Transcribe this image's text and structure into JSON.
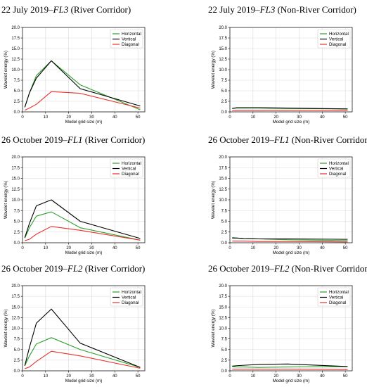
{
  "colors": {
    "Horizontal": "#2ca02c",
    "Vertical": "#000000",
    "Diagonal": "#e8302a"
  },
  "chart_data": [
    {
      "type": "line",
      "title": {
        "pre": "22 July 2019–",
        "em": "FL3",
        "post": " (River Corridor)"
      },
      "xlabel": "Model grid size (m)",
      "ylabel": "Wavelet energy (%)",
      "xlim": [
        0,
        53
      ],
      "ylim": [
        0,
        20
      ],
      "xticks": [
        0,
        10,
        20,
        30,
        40,
        50
      ],
      "yticks": [
        "0.0",
        "2.5",
        "5.0",
        "7.5",
        "10.0",
        "12.5",
        "15.0",
        "17.5",
        "20.0"
      ],
      "grid": true,
      "legend": "top-right",
      "x": [
        1,
        3,
        6,
        12.5,
        25,
        51
      ],
      "series": [
        {
          "name": "Horizontal",
          "values": [
            1.1,
            4.5,
            8.6,
            12.1,
            6.4,
            0.5
          ]
        },
        {
          "name": "Vertical",
          "values": [
            1.1,
            4.5,
            8.0,
            12.1,
            5.5,
            1.4
          ]
        },
        {
          "name": "Diagonal",
          "values": [
            0.4,
            0.9,
            1.8,
            4.8,
            4.4,
            0.9
          ]
        }
      ]
    },
    {
      "type": "line",
      "title": {
        "pre": "22 July 2019–",
        "em": "FL3",
        "post": " (Non-River Corridor)"
      },
      "xlabel": "Model grid size (m)",
      "ylabel": "Wavelet energy (%)",
      "xlim": [
        0,
        53
      ],
      "ylim": [
        0,
        20
      ],
      "xticks": [
        0,
        10,
        20,
        30,
        40,
        50
      ],
      "yticks": [
        "0.0",
        "2.5",
        "5.0",
        "7.5",
        "10.0",
        "12.5",
        "15.0",
        "17.5",
        "20.0"
      ],
      "grid": true,
      "legend": "top-right",
      "x": [
        1,
        3,
        6,
        12.5,
        25,
        51
      ],
      "series": [
        {
          "name": "Horizontal",
          "values": [
            0.8,
            0.9,
            0.9,
            0.9,
            0.8,
            0.7
          ]
        },
        {
          "name": "Vertical",
          "values": [
            0.8,
            1.0,
            1.0,
            1.0,
            0.9,
            0.7
          ]
        },
        {
          "name": "Diagonal",
          "values": [
            0.3,
            0.4,
            0.4,
            0.4,
            0.4,
            0.3
          ]
        }
      ]
    },
    {
      "type": "line",
      "title": {
        "pre": "26 October 2019–",
        "em": "FL1",
        "post": " (River Corridor)"
      },
      "xlabel": "Model grid size (m)",
      "ylabel": "Wavelet energy (%)",
      "xlim": [
        0,
        53
      ],
      "ylim": [
        0,
        20
      ],
      "xticks": [
        0,
        10,
        20,
        30,
        40,
        50
      ],
      "yticks": [
        "0.0",
        "2.5",
        "5.0",
        "7.5",
        "10.0",
        "12.5",
        "15.0",
        "17.5",
        "20.0"
      ],
      "grid": true,
      "legend": "top-right",
      "x": [
        1,
        3,
        6,
        12.5,
        25,
        51
      ],
      "series": [
        {
          "name": "Horizontal",
          "values": [
            1.1,
            3.5,
            6.2,
            7.2,
            3.5,
            0.6
          ]
        },
        {
          "name": "Vertical",
          "values": [
            1.2,
            4.5,
            8.6,
            10.0,
            5.0,
            1.0
          ]
        },
        {
          "name": "Diagonal",
          "values": [
            0.5,
            0.8,
            2.0,
            3.8,
            2.9,
            0.6
          ]
        }
      ]
    },
    {
      "type": "line",
      "title": {
        "pre": "26 October 2019–",
        "em": "FL1",
        "post": " (Non-River Corridor)"
      },
      "xlabel": "Model grid size (m)",
      "ylabel": "Wavelet energy (%)",
      "xlim": [
        0,
        53
      ],
      "ylim": [
        0,
        20
      ],
      "xticks": [
        0,
        10,
        20,
        30,
        40,
        50
      ],
      "yticks": [
        "0.0",
        "2.5",
        "5.0",
        "7.5",
        "10.0",
        "12.5",
        "15.0",
        "17.5",
        "20.0"
      ],
      "grid": true,
      "legend": "top-right",
      "x": [
        1,
        3,
        6,
        12.5,
        25,
        51
      ],
      "series": [
        {
          "name": "Horizontal",
          "values": [
            1.2,
            1.1,
            1.0,
            0.9,
            0.7,
            0.5
          ]
        },
        {
          "name": "Vertical",
          "values": [
            1.1,
            1.1,
            1.0,
            0.9,
            0.9,
            0.8
          ]
        },
        {
          "name": "Diagonal",
          "values": [
            0.4,
            0.4,
            0.4,
            0.3,
            0.3,
            0.2
          ]
        }
      ]
    },
    {
      "type": "line",
      "title": {
        "pre": "26 October 2019–",
        "em": "FL2",
        "post": " (River Corridor)"
      },
      "xlabel": "Model grid size (m)",
      "ylabel": "Wavelet energy (%)",
      "xlim": [
        0,
        53
      ],
      "ylim": [
        0,
        20
      ],
      "xticks": [
        0,
        10,
        20,
        30,
        40,
        50
      ],
      "yticks": [
        "0.0",
        "2.5",
        "5.0",
        "7.5",
        "10.0",
        "12.5",
        "15.0",
        "17.5",
        "20.0"
      ],
      "grid": true,
      "legend": "top-right",
      "x": [
        1,
        3,
        6,
        12.5,
        25,
        51
      ],
      "series": [
        {
          "name": "Horizontal",
          "values": [
            1.2,
            3.5,
            6.3,
            7.8,
            5.0,
            0.8
          ]
        },
        {
          "name": "Vertical",
          "values": [
            1.2,
            5.5,
            11.2,
            14.5,
            6.5,
            0.8
          ]
        },
        {
          "name": "Diagonal",
          "values": [
            0.5,
            0.9,
            2.2,
            4.6,
            3.5,
            0.6
          ]
        }
      ]
    },
    {
      "type": "line",
      "title": {
        "pre": "26 October 2019–",
        "em": "FL2",
        "post": " (Non-River Corridor)"
      },
      "xlabel": "Model grid size (m)",
      "ylabel": "Wavelet energy (%)",
      "xlim": [
        0,
        53
      ],
      "ylim": [
        0,
        20
      ],
      "xticks": [
        0,
        10,
        20,
        30,
        40,
        50
      ],
      "yticks": [
        "0.0",
        "2.5",
        "5.0",
        "7.5",
        "10.0",
        "12.5",
        "15.0",
        "17.5",
        "20.0"
      ],
      "grid": true,
      "legend": "top-right",
      "x": [
        1,
        3,
        6,
        12.5,
        25,
        51
      ],
      "series": [
        {
          "name": "Horizontal",
          "values": [
            1.0,
            0.9,
            0.9,
            0.8,
            0.9,
            1.0
          ]
        },
        {
          "name": "Vertical",
          "values": [
            1.1,
            1.2,
            1.3,
            1.5,
            1.6,
            1.0
          ]
        },
        {
          "name": "Diagonal",
          "values": [
            0.4,
            0.4,
            0.4,
            0.4,
            0.4,
            0.3
          ]
        }
      ]
    }
  ]
}
